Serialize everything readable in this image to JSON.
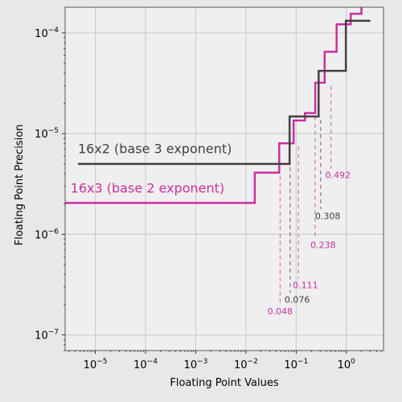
{
  "chart_data": {
    "type": "line",
    "title": "",
    "xlabel": "Floating Point Values",
    "ylabel": "Floating Point Precision",
    "xscale": "log",
    "yscale": "log",
    "xlim": [
      2.5e-06,
      5.5
    ],
    "ylim": [
      7e-08,
      0.00018
    ],
    "grid": true,
    "x_ticks": [
      {
        "base": "10",
        "exp": "−5",
        "value": 1e-05
      },
      {
        "base": "10",
        "exp": "−4",
        "value": 0.0001
      },
      {
        "base": "10",
        "exp": "−3",
        "value": 0.001
      },
      {
        "base": "10",
        "exp": "−2",
        "value": 0.01
      },
      {
        "base": "10",
        "exp": "−1",
        "value": 0.1
      },
      {
        "base": "10",
        "exp": "0",
        "value": 1
      }
    ],
    "y_ticks": [
      {
        "base": "10",
        "exp": "−7",
        "value": 1e-07
      },
      {
        "base": "10",
        "exp": "−6",
        "value": 1e-06
      },
      {
        "base": "10",
        "exp": "−5",
        "value": 1e-05
      },
      {
        "base": "10",
        "exp": "−4",
        "value": 0.0001
      }
    ],
    "series": [
      {
        "name": "16x3 (base 2 exponent)",
        "color": "#cc2f9f",
        "x": [
          2.5e-06,
          0.015,
          0.015,
          0.046,
          0.046,
          0.089,
          0.089,
          0.15,
          0.15,
          0.24,
          0.24,
          0.37,
          0.37,
          0.64,
          0.64,
          1.22,
          1.22,
          2.0,
          2.0
        ],
        "y": [
          2.05e-06,
          2.05e-06,
          4.1e-06,
          4.1e-06,
          8e-06,
          8e-06,
          1.35e-05,
          1.35e-05,
          1.6e-05,
          1.6e-05,
          3.2e-05,
          3.2e-05,
          6.5e-05,
          6.5e-05,
          0.000122,
          0.000122,
          0.000155,
          0.000155,
          0.00018
        ]
      },
      {
        "name": "16x2 (base 3 exponent)",
        "color": "#404040",
        "x": [
          4.5e-06,
          0.074,
          0.074,
          0.28,
          0.28,
          0.98,
          0.98,
          3.0
        ],
        "y": [
          5e-06,
          5e-06,
          1.48e-05,
          1.48e-05,
          4.2e-05,
          4.2e-05,
          0.000132,
          0.000132
        ]
      }
    ],
    "series_labels": [
      {
        "text": "16x2 (base 3 exponent)",
        "color": "#404040",
        "x": 4.5e-06,
        "y": 6.4e-06
      },
      {
        "text": "16x3 (base 2 exponent)",
        "color": "#cc2f9f",
        "x": 3.2e-06,
        "y": 2.6e-06
      }
    ],
    "annotations": [
      {
        "label": "0.048",
        "x": 0.048,
        "y_top": 4.1e-06,
        "y_label": 1.6e-07,
        "color": "#cc2f9f"
      },
      {
        "label": "0.076",
        "x": 0.076,
        "y_top": 5e-06,
        "y_label": 2.1e-07,
        "color": "#404040"
      },
      {
        "label": "0.111",
        "x": 0.111,
        "y_top": 8e-06,
        "y_label": 2.9e-07,
        "color": "#cc2f9f"
      },
      {
        "label": "0.238",
        "x": 0.238,
        "y_top": 1.6e-05,
        "y_label": 7.3e-07,
        "color": "#cc2f9f"
      },
      {
        "label": "0.308",
        "x": 0.308,
        "y_top": 1.48e-05,
        "y_label": 1.42e-06,
        "color": "#404040"
      },
      {
        "label": "0.492",
        "x": 0.492,
        "y_top": 3.2e-05,
        "y_label": 3.6e-06,
        "color": "#cc2f9f"
      }
    ]
  }
}
